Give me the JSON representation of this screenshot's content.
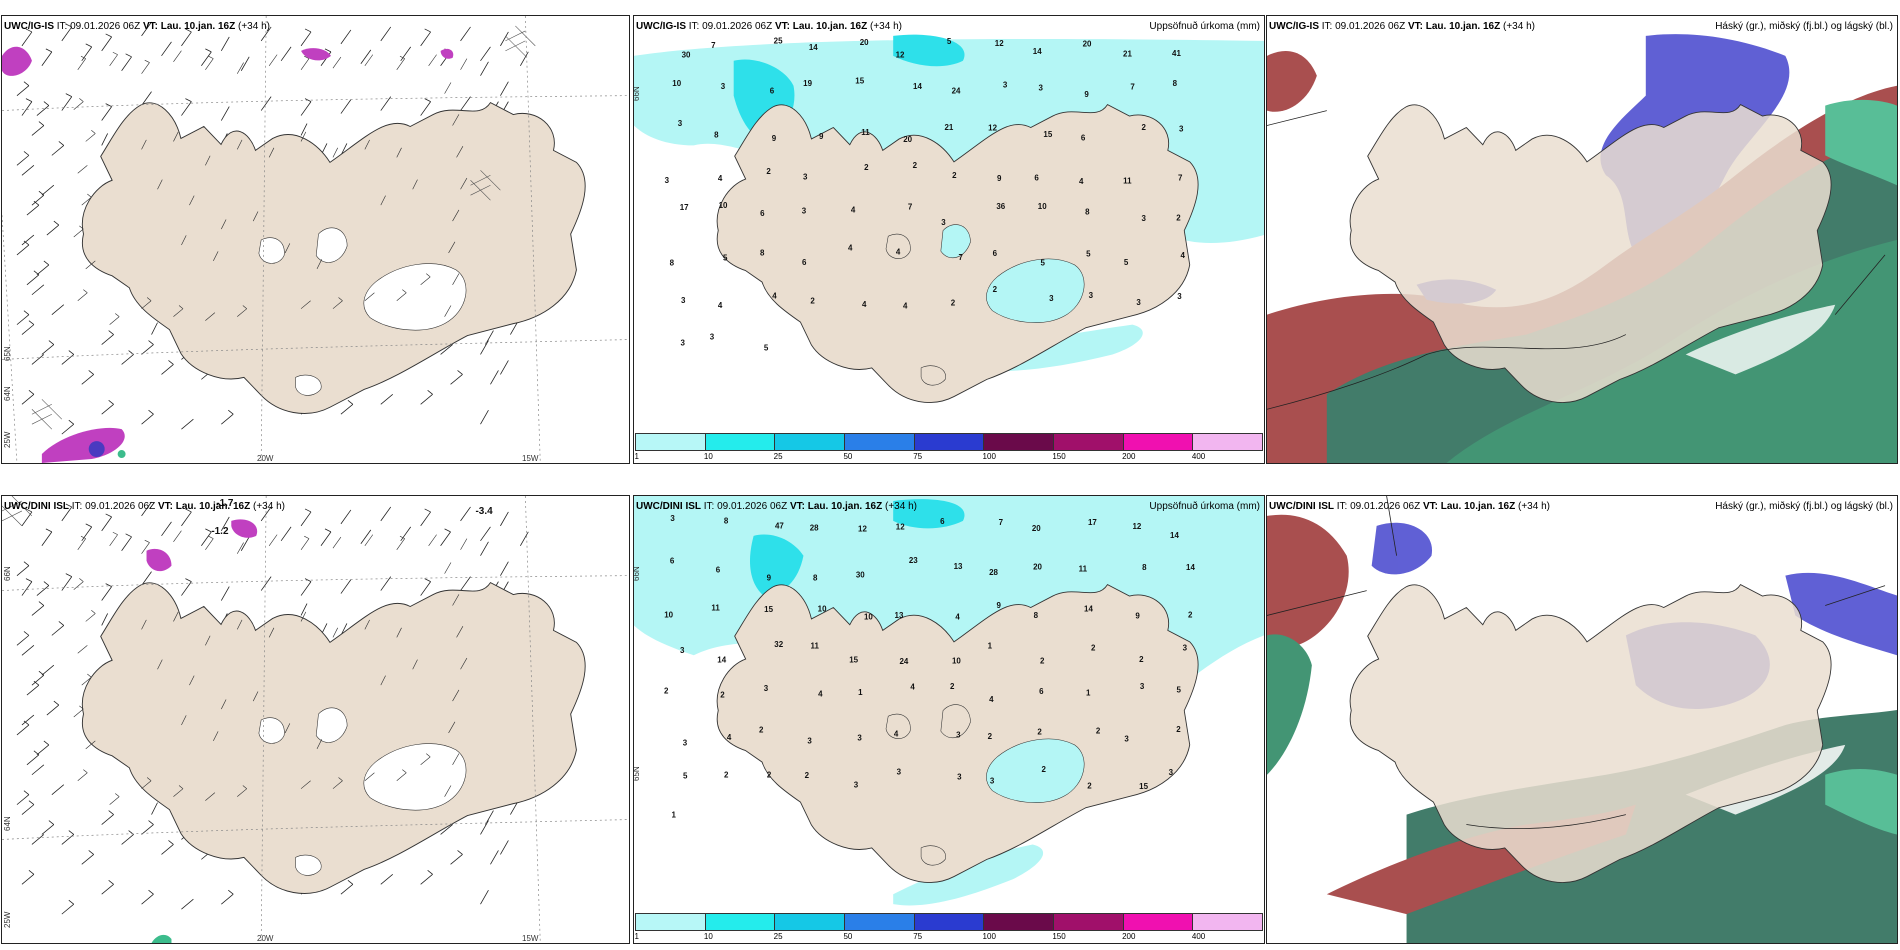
{
  "colors": {
    "land": "#eaded0",
    "coast": "#333333",
    "ice": "#ffffff",
    "sea": "#ffffff",
    "precip_light": "#b4f6f5",
    "precip_mid": "#2ee0ea",
    "cloud_high": "#2e6e5a",
    "cloud_mid": "#4f4fd0",
    "cloud_low": "#a03c3c"
  },
  "panels": {
    "top_wind": {
      "model": "UWC/IG-IS",
      "it_label": "IT:",
      "it": "09.01.2026 06Z",
      "vt_label": "VT:",
      "vt": "Lau. 10.jan. 16Z",
      "lead": "(+34 h)",
      "lon_labels": [
        "20W",
        "15W"
      ],
      "lat_labels": [
        "65N",
        "64N",
        "25W"
      ],
      "temps": []
    },
    "top_precip": {
      "model": "UWC/IG-IS",
      "it_label": "IT:",
      "it": "09.01.2026 06Z",
      "vt_label": "VT:",
      "vt": "Lau. 10.jan. 16Z",
      "lead": "(+34 h)",
      "right_title": "Uppsöfnuð úrkoma (mm)",
      "lat_label": "66N",
      "values": [
        "30",
        "7",
        "25",
        "14",
        "20",
        "12",
        "5",
        "12",
        "14",
        "20",
        "21",
        "41",
        "10",
        "3",
        "6",
        "19",
        "15",
        "14",
        "24",
        "3",
        "3",
        "9",
        "7",
        "8",
        "3",
        "8",
        "9",
        "9",
        "11",
        "20",
        "21",
        "12",
        "15",
        "6",
        "2",
        "3",
        "3",
        "4",
        "2",
        "3",
        "2",
        "2",
        "2",
        "9",
        "6",
        "4",
        "11",
        "7",
        "17",
        "10",
        "6",
        "3",
        "4",
        "7",
        "3",
        "36",
        "10",
        "8",
        "3",
        "2",
        "8",
        "5",
        "8",
        "6",
        "4",
        "4",
        "7",
        "6",
        "5",
        "5",
        "5",
        "4",
        "3",
        "4",
        "4",
        "2",
        "4",
        "4",
        "2",
        "2",
        "3",
        "3",
        "3",
        "3",
        "3",
        "3",
        "5"
      ]
    },
    "top_cloud": {
      "model": "UWC/IG-IS",
      "it_label": "IT:",
      "it": "09.01.2026 06Z",
      "vt_label": "VT:",
      "vt": "Lau. 10.jan. 16Z",
      "lead": "(+34 h)",
      "right_title": "Háský (gr.), miðský (fj.bl.) og lágský (bl.)"
    },
    "bottom_wind": {
      "model": "UWC/DINI ISL",
      "it_label": "IT:",
      "it": "09.01.2026 06Z",
      "vt_label": "VT:",
      "vt": "Lau. 10.jan. 16Z",
      "lead": "(+34 h)",
      "lon_labels": [
        "20W",
        "15W"
      ],
      "lat_labels": [
        "66N",
        "64N",
        "25W"
      ],
      "temps": [
        "-1.7",
        "-1.2",
        "-3.4"
      ]
    },
    "bottom_precip": {
      "model": "UWC/DINI ISL",
      "it_label": "IT:",
      "it": "09.01.2026 06Z",
      "vt_label": "VT:",
      "vt": "Lau. 10.jan. 16Z",
      "lead": "(+34 h)",
      "right_title": "Uppsöfnuð úrkoma (mm)",
      "lat_labels": [
        "66N",
        "65N"
      ],
      "values": [
        "3",
        "8",
        "47",
        "28",
        "12",
        "12",
        "6",
        "7",
        "20",
        "17",
        "12",
        "14",
        "6",
        "6",
        "9",
        "8",
        "30",
        "23",
        "13",
        "28",
        "20",
        "11",
        "8",
        "14",
        "10",
        "11",
        "15",
        "10",
        "10",
        "13",
        "4",
        "9",
        "8",
        "14",
        "9",
        "2",
        "3",
        "14",
        "32",
        "11",
        "15",
        "24",
        "10",
        "1",
        "2",
        "2",
        "2",
        "3",
        "2",
        "2",
        "3",
        "4",
        "1",
        "4",
        "2",
        "4",
        "6",
        "1",
        "3",
        "5",
        "3",
        "4",
        "2",
        "3",
        "3",
        "4",
        "3",
        "2",
        "2",
        "2",
        "3",
        "2",
        "5",
        "2",
        "2",
        "2",
        "3",
        "3",
        "3",
        "3",
        "2",
        "2",
        "15",
        "3",
        "1"
      ]
    },
    "bottom_cloud": {
      "model": "UWC/DINI ISL",
      "it_label": "IT:",
      "it": "09.01.2026 06Z",
      "vt_label": "VT:",
      "vt": "Lau. 10.jan. 16Z",
      "lead": "(+34 h)",
      "right_title": "Háský (gr.), miðský (fj.bl.) og lágský (bl.)"
    }
  },
  "colorbar": {
    "labels": [
      "1",
      "10",
      "25",
      "50",
      "75",
      "100",
      "150",
      "200",
      "400"
    ],
    "colors": [
      "#b7f7f7",
      "#24ecec",
      "#15c8e6",
      "#2a7fe8",
      "#2a3bd0",
      "#6a0a4a",
      "#a0106a",
      "#f010b0",
      "#f2b6f0"
    ]
  }
}
